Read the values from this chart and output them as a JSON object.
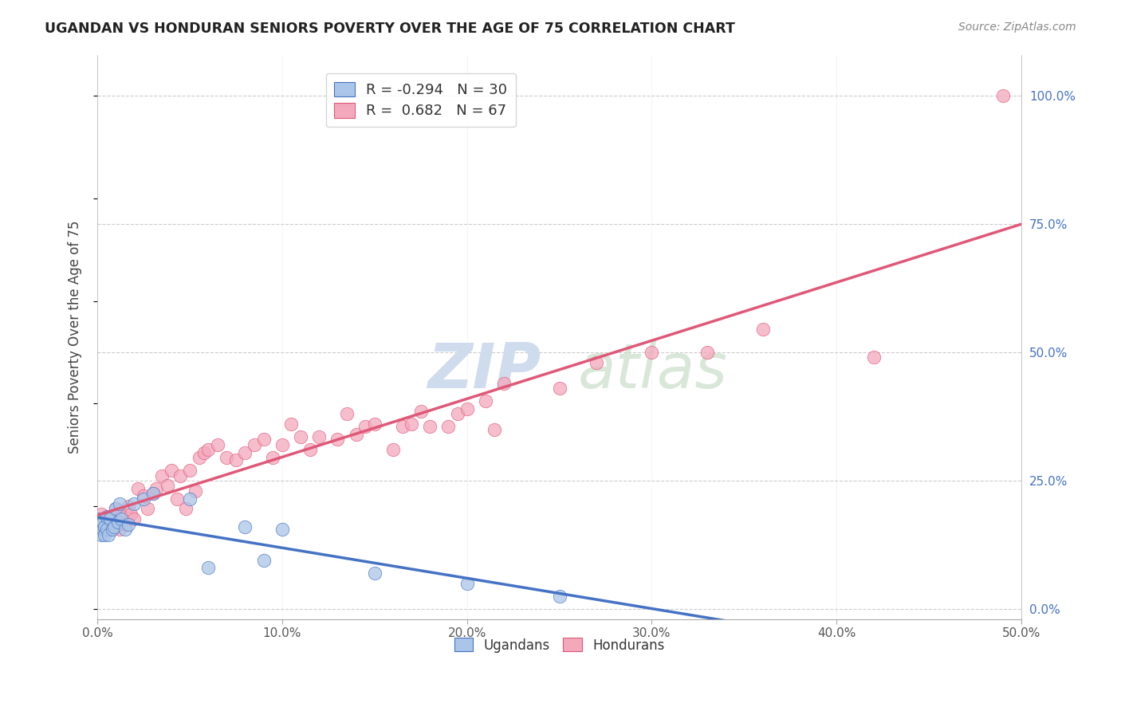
{
  "title": "UGANDAN VS HONDURAN SENIORS POVERTY OVER THE AGE OF 75 CORRELATION CHART",
  "source": "Source: ZipAtlas.com",
  "ylabel": "Seniors Poverty Over the Age of 75",
  "xlim": [
    0.0,
    0.5
  ],
  "ylim": [
    -0.02,
    1.08
  ],
  "plot_ylim": [
    0.0,
    1.05
  ],
  "x_ticks": [
    0.0,
    0.1,
    0.2,
    0.3,
    0.4,
    0.5
  ],
  "x_tick_labels": [
    "0.0%",
    "10.0%",
    "20.0%",
    "30.0%",
    "40.0%",
    "50.0%"
  ],
  "y_ticks_right": [
    0.0,
    0.25,
    0.5,
    0.75,
    1.0
  ],
  "y_tick_labels_right": [
    "0.0%",
    "25.0%",
    "50.0%",
    "75.0%",
    "100.0%"
  ],
  "grid_color": "#cccccc",
  "background_color": "#ffffff",
  "ugandan_color": "#aac5e8",
  "honduran_color": "#f4a8bc",
  "ugandan_line_color": "#4472c4",
  "honduran_line_color": "#e05878",
  "watermark_text": "ZIPatlas",
  "watermark_color": "#dde8f5",
  "legend_R_ugandan": "-0.294",
  "legend_N_ugandan": "30",
  "legend_R_honduran": "0.682",
  "legend_N_honduran": "67",
  "ugandan_x": [
    0.001,
    0.002,
    0.002,
    0.003,
    0.003,
    0.004,
    0.004,
    0.005,
    0.005,
    0.006,
    0.007,
    0.008,
    0.009,
    0.01,
    0.011,
    0.012,
    0.013,
    0.015,
    0.017,
    0.02,
    0.025,
    0.03,
    0.05,
    0.06,
    0.08,
    0.09,
    0.1,
    0.15,
    0.2,
    0.25
  ],
  "ugandan_y": [
    0.175,
    0.165,
    0.145,
    0.155,
    0.17,
    0.16,
    0.145,
    0.18,
    0.155,
    0.145,
    0.175,
    0.155,
    0.16,
    0.195,
    0.17,
    0.205,
    0.175,
    0.155,
    0.165,
    0.205,
    0.215,
    0.225,
    0.215,
    0.08,
    0.16,
    0.095,
    0.155,
    0.07,
    0.05,
    0.025
  ],
  "honduran_x": [
    0.002,
    0.003,
    0.004,
    0.005,
    0.006,
    0.007,
    0.008,
    0.009,
    0.01,
    0.011,
    0.012,
    0.013,
    0.015,
    0.017,
    0.018,
    0.02,
    0.022,
    0.025,
    0.027,
    0.03,
    0.032,
    0.035,
    0.038,
    0.04,
    0.043,
    0.045,
    0.048,
    0.05,
    0.053,
    0.055,
    0.058,
    0.06,
    0.065,
    0.07,
    0.075,
    0.08,
    0.085,
    0.09,
    0.095,
    0.1,
    0.105,
    0.11,
    0.115,
    0.12,
    0.13,
    0.135,
    0.14,
    0.145,
    0.15,
    0.16,
    0.165,
    0.17,
    0.175,
    0.18,
    0.19,
    0.195,
    0.2,
    0.21,
    0.215,
    0.22,
    0.25,
    0.27,
    0.3,
    0.33,
    0.36,
    0.42,
    0.49
  ],
  "honduran_y": [
    0.185,
    0.155,
    0.17,
    0.175,
    0.155,
    0.155,
    0.16,
    0.17,
    0.195,
    0.165,
    0.155,
    0.185,
    0.165,
    0.2,
    0.185,
    0.175,
    0.235,
    0.22,
    0.195,
    0.225,
    0.235,
    0.26,
    0.24,
    0.27,
    0.215,
    0.26,
    0.195,
    0.27,
    0.23,
    0.295,
    0.305,
    0.31,
    0.32,
    0.295,
    0.29,
    0.305,
    0.32,
    0.33,
    0.295,
    0.32,
    0.36,
    0.335,
    0.31,
    0.335,
    0.33,
    0.38,
    0.34,
    0.355,
    0.36,
    0.31,
    0.355,
    0.36,
    0.385,
    0.355,
    0.355,
    0.38,
    0.39,
    0.405,
    0.35,
    0.44,
    0.43,
    0.48,
    0.5,
    0.5,
    0.545,
    0.49,
    1.0
  ]
}
